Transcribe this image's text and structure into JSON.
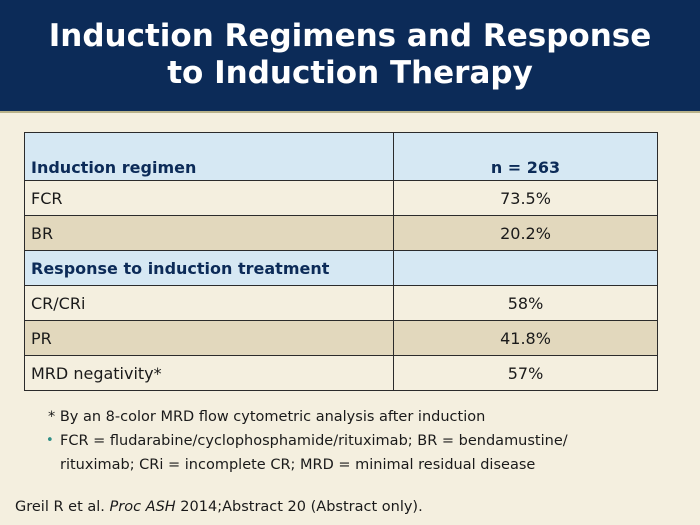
{
  "title": {
    "line1": "Induction Regimens and Response",
    "line2": "to Induction Therapy"
  },
  "table": {
    "header": {
      "label": "Induction regimen",
      "value": "n = 263"
    },
    "rows_regimen": [
      {
        "label": "FCR",
        "value": "73.5%"
      },
      {
        "label": "BR",
        "value": "20.2%"
      }
    ],
    "section": {
      "label": "Response to induction treatment",
      "value": ""
    },
    "rows_response": [
      {
        "label": "CR/CRi",
        "value": "58%"
      },
      {
        "label": "PR",
        "value": "41.8%"
      },
      {
        "label": "MRD negativity*",
        "value": "57%"
      }
    ]
  },
  "notes": {
    "footnote": "* By an 8-color MRD flow cytometric analysis after induction",
    "bullet_line1": "FCR = fludarabine/cyclophosphamide/rituximab; BR = bendamustine/",
    "bullet_line2": "rituximab; CRi = incomplete CR; MRD = minimal residual disease"
  },
  "citation": {
    "authors": "Greil R et al.",
    "journal": "Proc ASH",
    "detail": "2014;Abstract 20 (Abstract only)."
  },
  "colors": {
    "header_bg": "#0c2b58",
    "page_bg": "#f4efdf",
    "table_header_bg": "#d6e8f3",
    "row_shade_bg": "#e2d8bd",
    "bullet_color": "#2f8f86"
  }
}
